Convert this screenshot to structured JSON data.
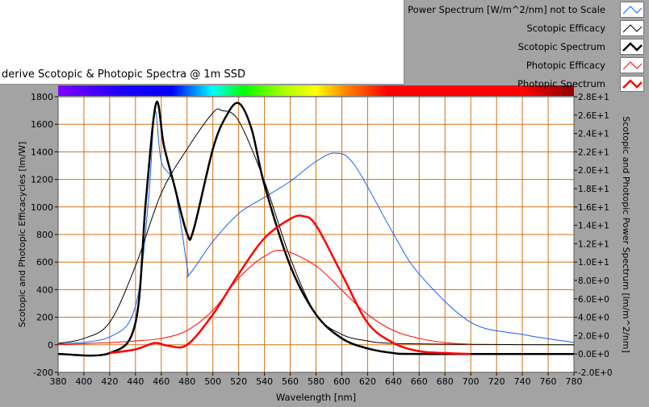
{
  "title": "derive Scotopic & Photopic Spectra @ 1m SSD",
  "legend": [
    {
      "label": "Power Spectrum [W/m^2/nm] not to Scale",
      "color": "#1060ff",
      "width": 1
    },
    {
      "label": "Scotopic Efficacy",
      "color": "#000000",
      "width": 1
    },
    {
      "label": "Scotopic Spectrum",
      "color": "#000000",
      "width": 2.5
    },
    {
      "label": "Photopic Efficacy",
      "color": "#ff0000",
      "width": 1
    },
    {
      "label": "Photopic Spectrum",
      "color": "#ff0000",
      "width": 2.5
    }
  ],
  "chart_data": {
    "type": "line",
    "xlabel": "Wavelength [nm]",
    "ylabel": "Scotopic and Photopic Efficacycies [lm/W]",
    "y2label": "Scotopic and Photopic Power Spectrum [lm/m^2/nm]",
    "xlim": [
      380,
      780
    ],
    "ylim": [
      -200,
      1800
    ],
    "y2lim": [
      -2,
      28
    ],
    "xticks": [
      "380",
      "400",
      "420",
      "440",
      "460",
      "480",
      "500",
      "520",
      "540",
      "560",
      "580",
      "600",
      "620",
      "640",
      "660",
      "680",
      "700",
      "720",
      "740",
      "760",
      "780"
    ],
    "yticks": [
      "-200",
      "0",
      "200",
      "400",
      "600",
      "800",
      "1000",
      "1200",
      "1400",
      "1600",
      "1800"
    ],
    "y2ticks": [
      "-2.0E+0",
      "0.0E+0",
      "2.0E+0",
      "4.0E+0",
      "6.0E+0",
      "8.0E+0",
      "1.0E+1",
      "1.2E+1",
      "1.4E+1",
      "1.6E+1",
      "1.8E+1",
      "2.0E+1",
      "2.2E+1",
      "2.4E+1",
      "2.6E+1",
      "2.8E+1"
    ],
    "grid": true,
    "legend_position": "top-right",
    "series": [
      {
        "name": "Power Spectrum [W/m^2/nm] not to Scale",
        "axis": "left",
        "x": [
          380,
          420,
          440,
          450,
          455,
          460,
          470,
          480,
          482,
          500,
          520,
          540,
          560,
          580,
          595,
          610,
          640,
          660,
          700,
          740,
          780
        ],
        "y": [
          5,
          57,
          280,
          1040,
          1695,
          1330,
          1157,
          572,
          514,
          750,
          952,
          1070,
          1186,
          1330,
          1390,
          1303,
          806,
          514,
          163,
          75,
          17
        ]
      },
      {
        "name": "Scotopic Efficacy",
        "axis": "left",
        "x": [
          380,
          400,
          420,
          440,
          460,
          480,
          500,
          507,
          520,
          540,
          560,
          580,
          600,
          620,
          640,
          700,
          780
        ],
        "y": [
          10,
          46,
          163,
          572,
          1100,
          1420,
          1683,
          1700,
          1625,
          1186,
          630,
          221,
          75,
          28,
          10,
          3,
          0
        ]
      },
      {
        "name": "Scotopic Spectrum",
        "axis": "right",
        "x": [
          380,
          420,
          440,
          448,
          456,
          462,
          470,
          480,
          485,
          500,
          510,
          520,
          530,
          540,
          560,
          580,
          600,
          620,
          640,
          660,
          780
        ],
        "y": [
          0,
          0.1,
          3.4,
          16.6,
          27.3,
          22.7,
          18.4,
          13.1,
          13.5,
          22.3,
          25.8,
          27.3,
          24.5,
          18.4,
          9.6,
          4.3,
          1.7,
          0.6,
          0.1,
          0,
          0
        ]
      },
      {
        "name": "Photopic Efficacy",
        "axis": "left",
        "x": [
          380,
          420,
          440,
          460,
          480,
          500,
          520,
          540,
          555,
          580,
          600,
          620,
          640,
          660,
          680,
          700
        ],
        "y": [
          0,
          16,
          28,
          46,
          104,
          250,
          484,
          642,
          683,
          572,
          396,
          220,
          104,
          46,
          16,
          4
        ]
      },
      {
        "name": "Photopic Spectrum",
        "axis": "right",
        "x": [
          420,
          440,
          455,
          465,
          480,
          500,
          520,
          540,
          560,
          570,
          580,
          600,
          620,
          640,
          660,
          680,
          700
        ],
        "y": [
          0.1,
          0.5,
          1.2,
          0.9,
          1.0,
          4.3,
          8.7,
          12.6,
          14.7,
          15.0,
          14.0,
          8.7,
          3.4,
          1.2,
          0.3,
          0.1,
          0
        ]
      }
    ]
  }
}
